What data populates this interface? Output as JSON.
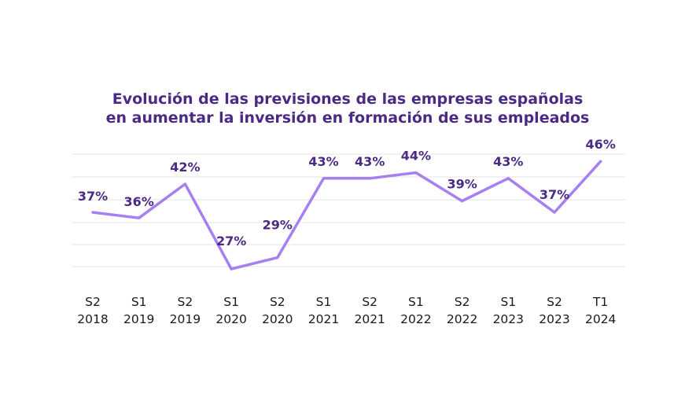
{
  "chart_data": {
    "type": "line",
    "title_lines": [
      "Evolución de las previsiones de las empresas españolas",
      "en aumentar la inversión en formación de sus empleados"
    ],
    "categories": [
      [
        "S2",
        "2018"
      ],
      [
        "S1",
        "2019"
      ],
      [
        "S2",
        "2019"
      ],
      [
        "S1",
        "2020"
      ],
      [
        "S2",
        "2020"
      ],
      [
        "S1",
        "2021"
      ],
      [
        "S2",
        "2021"
      ],
      [
        "S1",
        "2022"
      ],
      [
        "S2",
        "2022"
      ],
      [
        "S1",
        "2023"
      ],
      [
        "S2",
        "2023"
      ],
      [
        "T1",
        "2024"
      ]
    ],
    "values": [
      37,
      36,
      42,
      27,
      29,
      43,
      43,
      44,
      39,
      43,
      37,
      46
    ],
    "labels": [
      "37%",
      "36%",
      "42%",
      "27%",
      "29%",
      "43%",
      "43%",
      "44%",
      "39%",
      "43%",
      "37%",
      "46%"
    ],
    "grid": true,
    "line_color": "#a77ff5",
    "text_color": "#4b2a86"
  }
}
